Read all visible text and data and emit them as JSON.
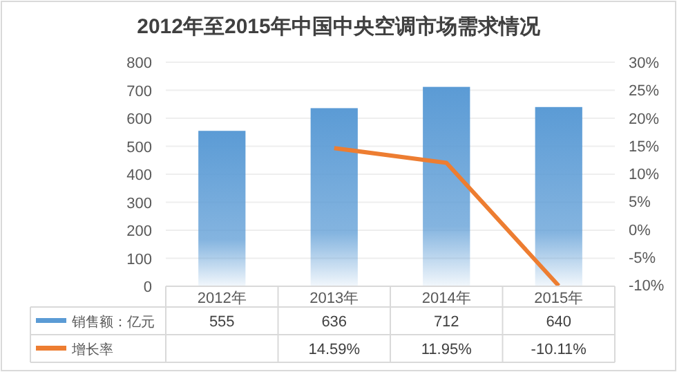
{
  "chart_data": {
    "type": "bar",
    "title": "2012年至2015年中国中央空调市场需求情况",
    "categories": [
      "2012年",
      "2013年",
      "2014年",
      "2015年"
    ],
    "series": [
      {
        "name": "销售额：亿元",
        "color": "#5b9bd5",
        "values": [
          555,
          636,
          712,
          640
        ],
        "value_labels": [
          "555",
          "636",
          "712",
          "640"
        ]
      },
      {
        "name": "增长率",
        "type": "line",
        "axis": "y2",
        "color": "#ed7d31",
        "values": [
          null,
          14.59,
          11.95,
          -10.11
        ],
        "value_labels": [
          null,
          "14.59%",
          "11.95%",
          "-10.11%"
        ]
      }
    ],
    "ylim": [
      0,
      800
    ],
    "yticks": [
      0,
      100,
      200,
      300,
      400,
      500,
      600,
      700,
      800
    ],
    "y2lim": [
      -10.2,
      30
    ],
    "y2ticks": [
      {
        "value": -10,
        "label": "-10%"
      },
      {
        "value": -5,
        "label": "-5%"
      },
      {
        "value": 0,
        "label": "0%"
      },
      {
        "value": 5,
        "label": "5%"
      },
      {
        "value": 10,
        "label": "10%"
      },
      {
        "value": 15,
        "label": "15%"
      },
      {
        "value": 20,
        "label": "20%"
      },
      {
        "value": 25,
        "label": "25%"
      },
      {
        "value": 30,
        "label": "30%"
      }
    ],
    "grid": "y",
    "legend": "bottom",
    "marker": "none",
    "line_style": "solid"
  }
}
